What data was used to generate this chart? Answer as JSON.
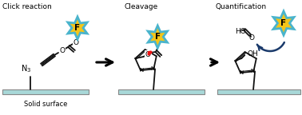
{
  "bg_color": "#ffffff",
  "star_color_face": "#f5c518",
  "star_color_edge": "#4ab4cc",
  "star_lw": 2.0,
  "arrow_color": "#111111",
  "surface_color": "#a8d8d8",
  "surface_edge": "#888888",
  "red_dot_color": "#ee1111",
  "curve_arrow_color": "#1a3a6b",
  "text_click": "Click reaction",
  "text_cleavage": "Cleavage",
  "text_quant": "Quantification",
  "text_solid": "Solid surface",
  "label_F": "F",
  "bond_color": "#111111",
  "bond_lw": 1.3
}
